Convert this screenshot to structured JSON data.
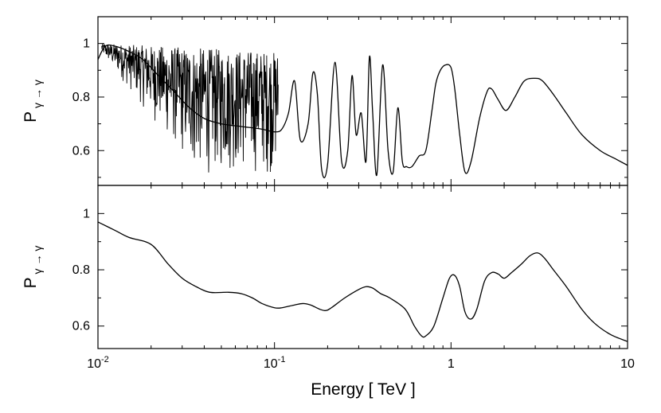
{
  "chart_data": [
    {
      "type": "line",
      "panel": "top",
      "ylabel_main": "P",
      "ylabel_sub": "γ → γ",
      "xscale": "log",
      "xlim": [
        0.01,
        10
      ],
      "ylim": [
        0.47,
        1.1
      ],
      "yticks": [
        0.6,
        0.8,
        1.0
      ],
      "ytick_labels": [
        "0.6",
        "0.8",
        "1"
      ],
      "grid": false,
      "series": [
        {
          "color": "#000000",
          "x": [
            0.01,
            0.011,
            0.0125,
            0.015,
            0.018,
            0.022,
            0.027,
            0.033,
            0.04,
            0.05,
            0.065,
            0.085,
            0.1,
            0.11,
            0.12,
            0.13,
            0.14,
            0.155,
            0.165,
            0.175,
            0.185,
            0.2,
            0.22,
            0.24,
            0.26,
            0.275,
            0.29,
            0.31,
            0.33,
            0.345,
            0.36,
            0.38,
            0.41,
            0.44,
            0.47,
            0.5,
            0.53,
            0.56,
            0.6,
            0.66,
            0.72,
            0.78,
            0.82,
            0.87,
            0.93,
            1.0,
            1.05,
            1.12,
            1.2,
            1.3,
            1.45,
            1.6,
            1.7,
            1.85,
            2.05,
            2.3,
            2.6,
            3.0,
            3.3,
            3.8,
            4.5,
            5.5,
            7.0,
            8.5,
            10.0
          ],
          "y": [
            0.94,
            0.99,
            0.99,
            0.97,
            0.94,
            0.88,
            0.82,
            0.76,
            0.72,
            0.7,
            0.69,
            0.68,
            0.67,
            0.68,
            0.74,
            0.86,
            0.64,
            0.7,
            0.89,
            0.81,
            0.53,
            0.55,
            0.93,
            0.56,
            0.6,
            0.88,
            0.66,
            0.74,
            0.56,
            0.95,
            0.74,
            0.51,
            0.92,
            0.6,
            0.52,
            0.76,
            0.56,
            0.54,
            0.54,
            0.58,
            0.6,
            0.75,
            0.85,
            0.9,
            0.92,
            0.91,
            0.83,
            0.66,
            0.52,
            0.56,
            0.72,
            0.82,
            0.83,
            0.79,
            0.75,
            0.8,
            0.86,
            0.87,
            0.86,
            0.81,
            0.74,
            0.66,
            0.6,
            0.57,
            0.545
          ]
        }
      ]
    },
    {
      "type": "line",
      "panel": "bottom",
      "ylabel_main": "P",
      "ylabel_sub": "γ → γ",
      "xscale": "log",
      "xlim": [
        0.01,
        10
      ],
      "ylim": [
        0.52,
        1.1
      ],
      "yticks": [
        0.6,
        0.8,
        1.0
      ],
      "ytick_labels": [
        "0.6",
        "0.8",
        "1"
      ],
      "xticks": [
        0.01,
        0.1,
        1,
        10
      ],
      "xtick_labels": [
        {
          "base": "10",
          "exp": "-2"
        },
        {
          "base": "10",
          "exp": "-1"
        },
        {
          "base": "1",
          "exp": ""
        },
        {
          "base": "10",
          "exp": ""
        }
      ],
      "xlabel": "Energy  [ TeV ]",
      "grid": false,
      "series": [
        {
          "color": "#000000",
          "x": [
            0.01,
            0.0125,
            0.015,
            0.02,
            0.025,
            0.03,
            0.036,
            0.043,
            0.055,
            0.065,
            0.075,
            0.085,
            0.1,
            0.11,
            0.13,
            0.145,
            0.16,
            0.18,
            0.195,
            0.21,
            0.25,
            0.3,
            0.33,
            0.36,
            0.4,
            0.45,
            0.55,
            0.62,
            0.68,
            0.72,
            0.8,
            0.9,
            0.98,
            1.05,
            1.12,
            1.2,
            1.3,
            1.4,
            1.55,
            1.7,
            1.85,
            2.0,
            2.2,
            2.5,
            2.8,
            3.1,
            3.4,
            3.8,
            4.5,
            5.5,
            6.5,
            8.0,
            10.0
          ],
          "y": [
            0.97,
            0.94,
            0.915,
            0.89,
            0.82,
            0.77,
            0.74,
            0.72,
            0.72,
            0.715,
            0.7,
            0.68,
            0.665,
            0.665,
            0.675,
            0.68,
            0.675,
            0.66,
            0.655,
            0.665,
            0.7,
            0.73,
            0.74,
            0.735,
            0.715,
            0.7,
            0.66,
            0.6,
            0.565,
            0.565,
            0.6,
            0.7,
            0.77,
            0.78,
            0.74,
            0.65,
            0.625,
            0.66,
            0.76,
            0.79,
            0.785,
            0.77,
            0.79,
            0.82,
            0.85,
            0.86,
            0.84,
            0.8,
            0.74,
            0.66,
            0.61,
            0.57,
            0.545
          ]
        }
      ]
    }
  ]
}
